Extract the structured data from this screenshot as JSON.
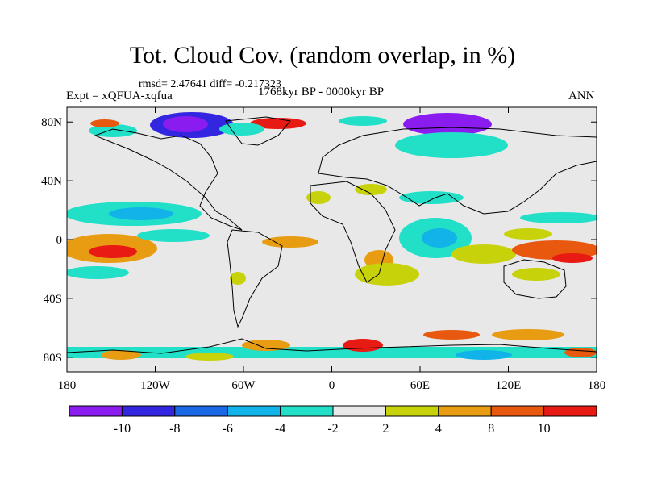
{
  "title": "Tot. Cloud Cov. (random overlap, in %)",
  "stats_line": "rmsd= 2.47641  diff= -0.217323",
  "experiment": "Expt = xQFUA-xqfua",
  "period": "1768kyr BP - 0000kyr BP",
  "season": "ANN",
  "lat_ticks": [
    {
      "label": "80N",
      "lat": 80
    },
    {
      "label": "40N",
      "lat": 40
    },
    {
      "label": "0",
      "lat": 0
    },
    {
      "label": "40S",
      "lat": -40
    },
    {
      "label": "80S",
      "lat": -80
    }
  ],
  "lon_ticks": [
    {
      "label": "180",
      "lon": -180
    },
    {
      "label": "120W",
      "lon": -120
    },
    {
      "label": "60W",
      "lon": -60
    },
    {
      "label": "0",
      "lon": 0
    },
    {
      "label": "60E",
      "lon": 60
    },
    {
      "label": "120E",
      "lon": 120
    },
    {
      "label": "180",
      "lon": 180
    }
  ],
  "colorbar": {
    "colors": [
      "#8a1cf0",
      "#3326e0",
      "#1a68e6",
      "#12b3e8",
      "#22e0c8",
      "#e8e8e8",
      "#c8d20a",
      "#e89c12",
      "#e8580e",
      "#e81a14"
    ],
    "labels": [
      "-10",
      "-8",
      "-6",
      "-4",
      "-2",
      "2",
      "4",
      "8",
      "10"
    ]
  },
  "colors": {
    "background": "#e8e8e8",
    "coast": "#000000"
  }
}
